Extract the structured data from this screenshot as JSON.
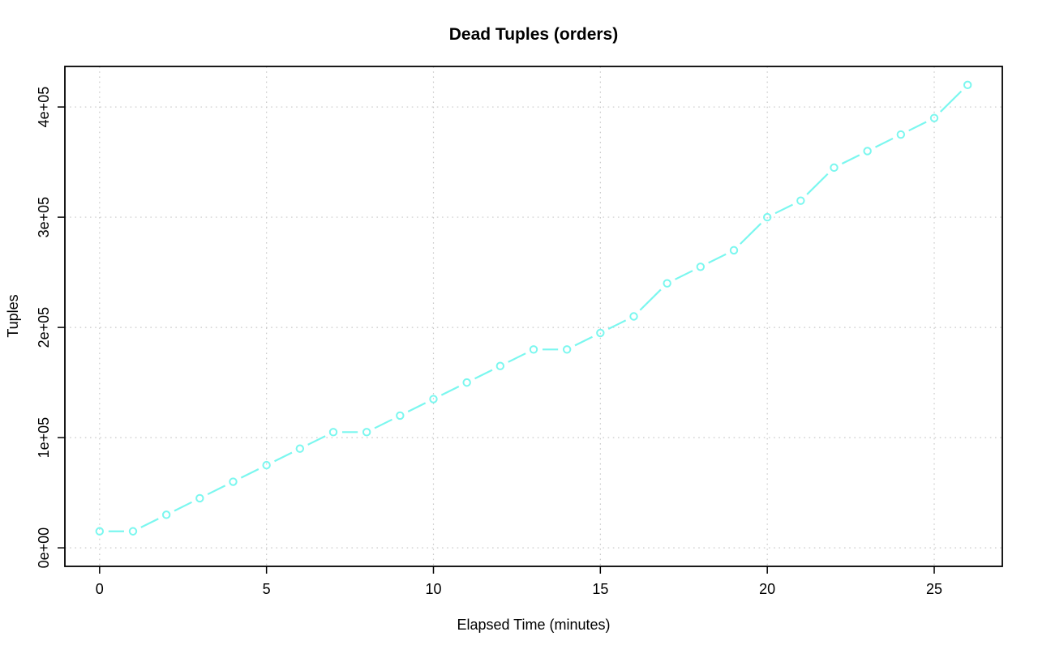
{
  "chart_data": {
    "type": "line",
    "title": "Dead Tuples (orders)",
    "xlabel": "Elapsed Time (minutes)",
    "ylabel": "Tuples",
    "x": [
      0,
      1,
      2,
      3,
      4,
      5,
      6,
      7,
      8,
      9,
      10,
      11,
      12,
      13,
      14,
      15,
      16,
      17,
      18,
      19,
      20,
      21,
      22,
      23,
      24,
      25,
      26
    ],
    "values": [
      15000,
      15000,
      30000,
      45000,
      60000,
      75000,
      90000,
      105000,
      105000,
      120000,
      135000,
      150000,
      165000,
      180000,
      180000,
      195000,
      210000,
      240000,
      255000,
      270000,
      300000,
      315000,
      345000,
      360000,
      375000,
      390000,
      420000
    ],
    "x_ticks": [
      0,
      5,
      10,
      15,
      20,
      25
    ],
    "y_ticks": [
      {
        "value": 0,
        "label": "0e+00"
      },
      {
        "value": 100000,
        "label": "1e+05"
      },
      {
        "value": 200000,
        "label": "2e+05"
      },
      {
        "value": 300000,
        "label": "3e+05"
      },
      {
        "value": 400000,
        "label": "4e+05"
      }
    ],
    "xlim": [
      -1.04,
      27.04
    ],
    "ylim": [
      -16800,
      436800
    ],
    "grid": true,
    "legend": "none",
    "marker": "open-circle",
    "line_style": "points-and-lines-with-gaps",
    "series_color": "#7BF7EF",
    "grid_color": "#C9C9C9",
    "axis_color": "#000000"
  }
}
